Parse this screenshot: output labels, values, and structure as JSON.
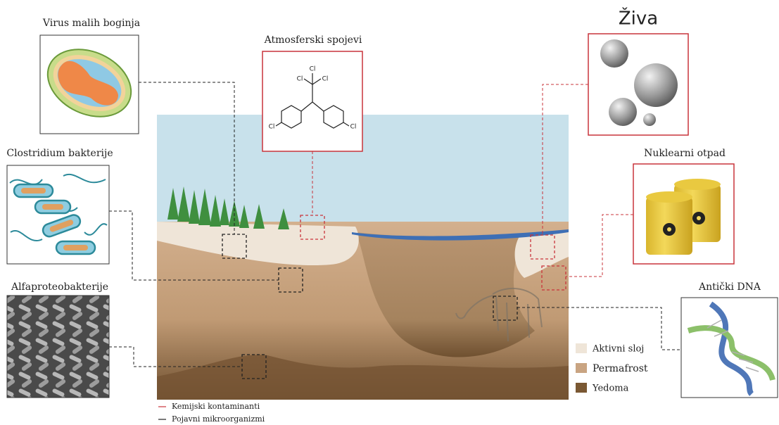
{
  "panels": {
    "virus": {
      "label": "Virus malih boginja"
    },
    "atmospheric": {
      "label": "Atmosferski spojevi",
      "atoms": [
        "Cl",
        "Cl",
        "Cl",
        "Cl",
        "Cl"
      ]
    },
    "mercury": {
      "label": "Živa"
    },
    "clostridium": {
      "label": "Clostridium bakterije"
    },
    "nuclear": {
      "label": "Nuklearni otpad"
    },
    "alpha": {
      "label": "Alfaproteobakterije"
    },
    "dna": {
      "label": "Antički DNA"
    }
  },
  "legend": {
    "layers": [
      "Aktivni sloj",
      "Permafrost",
      "Yedoma"
    ],
    "lines": [
      "Kemijski kontaminanti",
      "Pojavni mikroorganizmi"
    ]
  }
}
